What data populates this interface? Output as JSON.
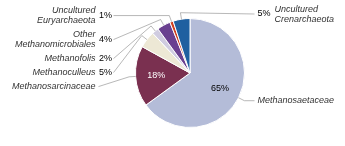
{
  "chart_data": {
    "type": "pie",
    "categories": [
      "Methanosaetaceae",
      "Methanosarcinaceae",
      "Methanoculleus",
      "Methanofolis",
      "Other\nMethanomicrobiales",
      "Uncultured\nEuryarchaeota",
      "Uncultured\nCrenarchaeota"
    ],
    "values": [
      65,
      18,
      5,
      2,
      4,
      1,
      5
    ],
    "value_labels": [
      "65%",
      "18%",
      "5%",
      "2%",
      "4%",
      "1%",
      "5%"
    ],
    "colors": [
      "#b4bcd8",
      "#7a3050",
      "#ede8d5",
      "#d0cce0",
      "#6a4090",
      "#d04020",
      "#2060a0"
    ],
    "data_labels": true
  }
}
